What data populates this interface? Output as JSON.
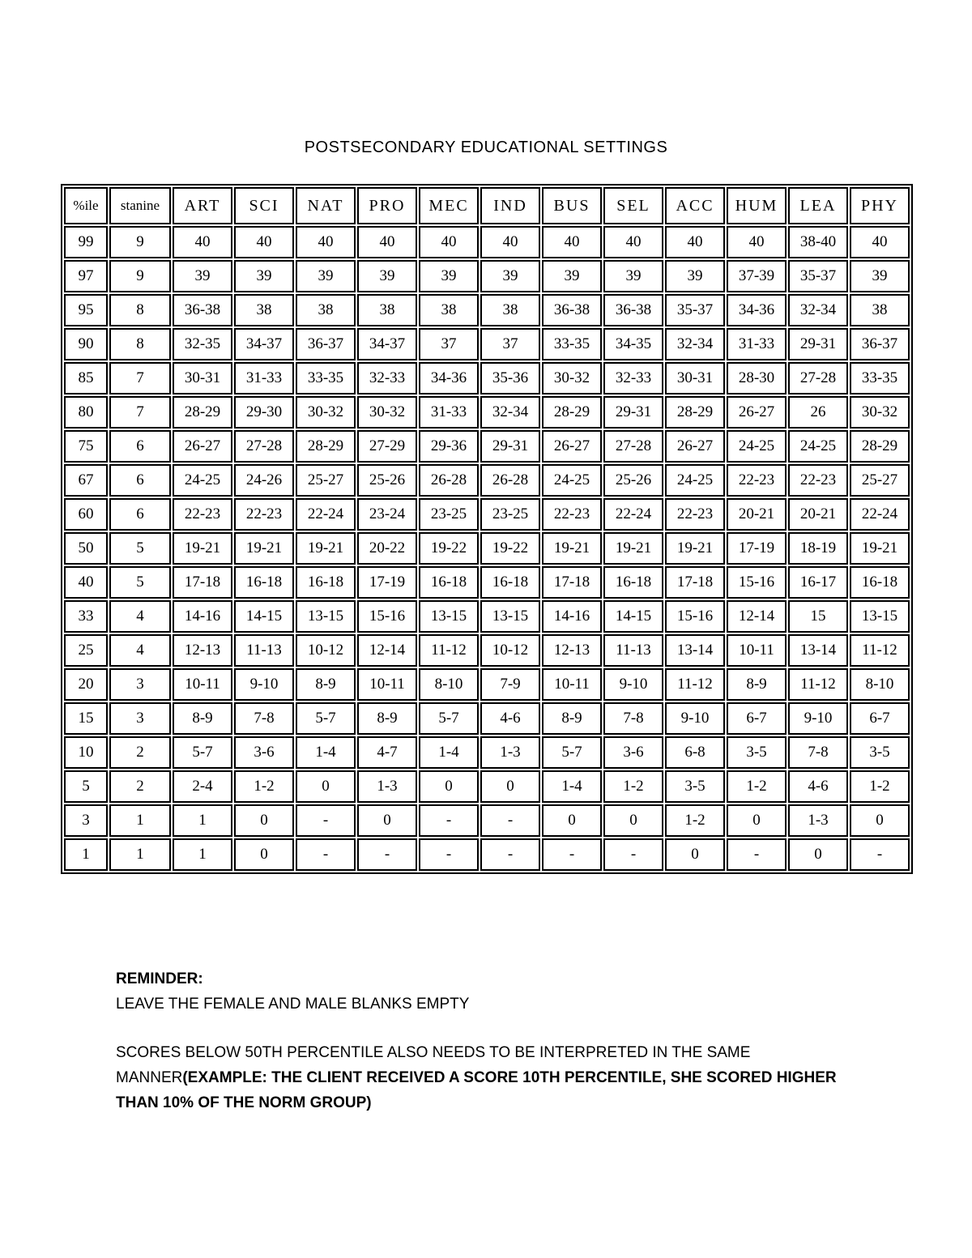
{
  "title": "POSTSECONDARY EDUCATIONAL SETTINGS",
  "table": {
    "headers": [
      "%ile",
      "stanine",
      "ART",
      "SCI",
      "NAT",
      "PRO",
      "MEC",
      "IND",
      "BUS",
      "SEL",
      "ACC",
      "HUM",
      "LEA",
      "PHY"
    ],
    "rows": [
      [
        "99",
        "9",
        "40",
        "40",
        "40",
        "40",
        "40",
        "40",
        "40",
        "40",
        "40",
        "40",
        "38-40",
        "40"
      ],
      [
        "97",
        "9",
        "39",
        "39",
        "39",
        "39",
        "39",
        "39",
        "39",
        "39",
        "39",
        "37-39",
        "35-37",
        "39"
      ],
      [
        "95",
        "8",
        "36-38",
        "38",
        "38",
        "38",
        "38",
        "38",
        "36-38",
        "36-38",
        "35-37",
        "34-36",
        "32-34",
        "38"
      ],
      [
        "90",
        "8",
        "32-35",
        "34-37",
        "36-37",
        "34-37",
        "37",
        "37",
        "33-35",
        "34-35",
        "32-34",
        "31-33",
        "29-31",
        "36-37"
      ],
      [
        "85",
        "7",
        "30-31",
        "31-33",
        "33-35",
        "32-33",
        "34-36",
        "35-36",
        "30-32",
        "32-33",
        "30-31",
        "28-30",
        "27-28",
        "33-35"
      ],
      [
        "80",
        "7",
        "28-29",
        "29-30",
        "30-32",
        "30-32",
        "31-33",
        "32-34",
        "28-29",
        "29-31",
        "28-29",
        "26-27",
        "26",
        "30-32"
      ],
      [
        "75",
        "6",
        "26-27",
        "27-28",
        "28-29",
        "27-29",
        "29-36",
        "29-31",
        "26-27",
        "27-28",
        "26-27",
        "24-25",
        "24-25",
        "28-29"
      ],
      [
        "67",
        "6",
        "24-25",
        "24-26",
        "25-27",
        "25-26",
        "26-28",
        "26-28",
        "24-25",
        "25-26",
        "24-25",
        "22-23",
        "22-23",
        "25-27"
      ],
      [
        "60",
        "6",
        "22-23",
        "22-23",
        "22-24",
        "23-24",
        "23-25",
        "23-25",
        "22-23",
        "22-24",
        "22-23",
        "20-21",
        "20-21",
        "22-24"
      ],
      [
        "50",
        "5",
        "19-21",
        "19-21",
        "19-21",
        "20-22",
        "19-22",
        "19-22",
        "19-21",
        "19-21",
        "19-21",
        "17-19",
        "18-19",
        "19-21"
      ],
      [
        "40",
        "5",
        "17-18",
        "16-18",
        "16-18",
        "17-19",
        "16-18",
        "16-18",
        "17-18",
        "16-18",
        "17-18",
        "15-16",
        "16-17",
        "16-18"
      ],
      [
        "33",
        "4",
        "14-16",
        "14-15",
        "13-15",
        "15-16",
        "13-15",
        "13-15",
        "14-16",
        "14-15",
        "15-16",
        "12-14",
        "15",
        "13-15"
      ],
      [
        "25",
        "4",
        "12-13",
        "11-13",
        "10-12",
        "12-14",
        "11-12",
        "10-12",
        "12-13",
        "11-13",
        "13-14",
        "10-11",
        "13-14",
        "11-12"
      ],
      [
        "20",
        "3",
        "10-11",
        "9-10",
        "8-9",
        "10-11",
        "8-10",
        "7-9",
        "10-11",
        "9-10",
        "11-12",
        "8-9",
        "11-12",
        "8-10"
      ],
      [
        "15",
        "3",
        "8-9",
        "7-8",
        "5-7",
        "8-9",
        "5-7",
        "4-6",
        "8-9",
        "7-8",
        "9-10",
        "6-7",
        "9-10",
        "6-7"
      ],
      [
        "10",
        "2",
        "5-7",
        "3-6",
        "1-4",
        "4-7",
        "1-4",
        "1-3",
        "5-7",
        "3-6",
        "6-8",
        "3-5",
        "7-8",
        "3-5"
      ],
      [
        "5",
        "2",
        "2-4",
        "1-2",
        "0",
        "1-3",
        "0",
        "0",
        "1-4",
        "1-2",
        "3-5",
        "1-2",
        "4-6",
        "1-2"
      ],
      [
        "3",
        "1",
        "1",
        "0",
        "-",
        "0",
        "-",
        "-",
        "0",
        "0",
        "1-2",
        "0",
        "1-3",
        "0"
      ],
      [
        "1",
        "1",
        "1",
        "0",
        "-",
        "-",
        "-",
        "-",
        "-",
        "-",
        "0",
        "-",
        "0",
        "-"
      ]
    ]
  },
  "notes": {
    "reminder_label": "REMINDER:",
    "reminder_text": "LEAVE THE FEMALE AND MALE BLANKS EMPTY",
    "interpret_regular": "SCORES BELOW 50TH PERCENTILE ALSO NEEDS TO BE INTERPRETED IN THE SAME MANNER",
    "interpret_bold": "(EXAMPLE: THE CLIENT RECEIVED A SCORE 10TH PERCENTILE, SHE SCORED HIGHER THAN 10% OF THE NORM GROUP)"
  }
}
